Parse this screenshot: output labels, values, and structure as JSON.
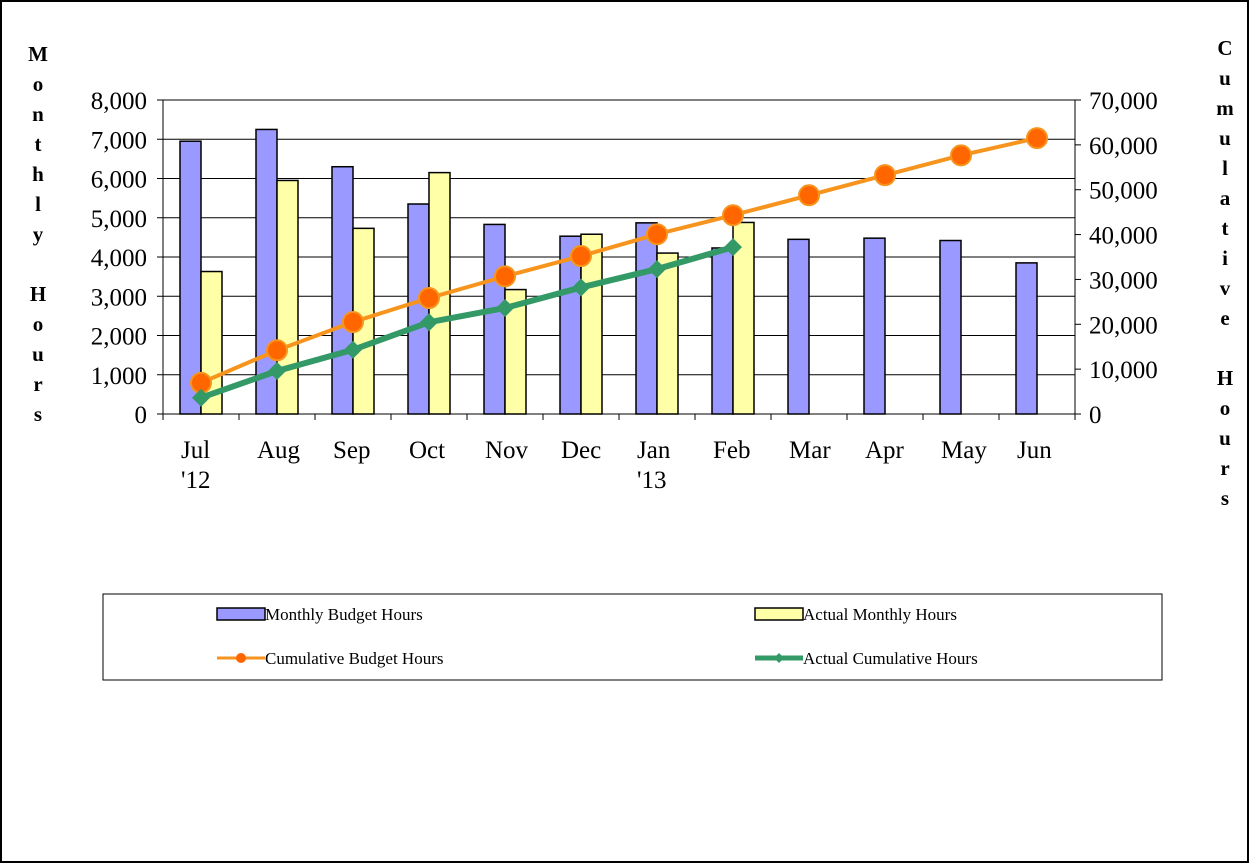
{
  "chart_data": {
    "type": "bar_line",
    "y_label": "Monthly Hours",
    "y2_label": "Cumulative Hours",
    "categories": [
      "Jul '12",
      "Aug",
      "Sep",
      "Oct",
      "Nov",
      "Dec",
      "Jan '13",
      "Feb",
      "Mar",
      "Apr",
      "May",
      "Jun"
    ],
    "series": [
      {
        "name": "Monthly Budget Hours",
        "type": "bar",
        "color": "#9999ff",
        "values": [
          6950,
          7250,
          6300,
          5350,
          4830,
          4530,
          4870,
          4230,
          4450,
          4480,
          4420,
          3850
        ]
      },
      {
        "name": "Actual Monthly Hours",
        "type": "bar",
        "color": "#ffffa8",
        "values": [
          3630,
          5950,
          4730,
          6150,
          3170,
          4580,
          4100,
          4880,
          null,
          null,
          null,
          null
        ]
      },
      {
        "name": "Cumulative Budget Hours",
        "type": "line",
        "axis": "y2",
        "color": "#f7941d",
        "marker": "circle",
        "marker_color": "#ff6600",
        "values": [
          6950,
          14200,
          20500,
          25850,
          30680,
          35210,
          40080,
          44310,
          48760,
          53240,
          57660,
          61510
        ]
      },
      {
        "name": "Actual Cumulative Hours",
        "type": "line",
        "axis": "y2",
        "color": "#339966",
        "marker": "diamond",
        "marker_color": "#339966",
        "values": [
          3630,
          9580,
          14310,
          20460,
          23630,
          28210,
          32310,
          37190,
          null,
          null,
          null,
          null
        ]
      }
    ],
    "ylim": [
      0,
      8000
    ],
    "yticks": [
      0,
      {
        "value": 1000,
        "label": "1,000"
      },
      {
        "value": 2000,
        "label": "2,000"
      },
      {
        "value": 3000,
        "label": "3,000"
      },
      {
        "value": 4000,
        "label": "4,000"
      },
      {
        "value": 5000,
        "label": "5,000"
      },
      {
        "value": 6000,
        "label": "6,000"
      },
      {
        "value": 7000,
        "label": "7,000"
      },
      {
        "value": 8000,
        "label": "8,000"
      }
    ],
    "y2lim": [
      0,
      70000
    ],
    "y2ticks": [
      0,
      {
        "value": 10000,
        "label": "10,000"
      },
      {
        "value": 20000,
        "label": "20,000"
      },
      {
        "value": 30000,
        "label": "30,000"
      },
      {
        "value": 40000,
        "label": "40,000"
      },
      {
        "value": 50000,
        "label": "50,000"
      },
      {
        "value": 60000,
        "label": "60,000"
      },
      {
        "value": 70000,
        "label": "70,000"
      }
    ],
    "grid": true,
    "legend": "bottom"
  }
}
